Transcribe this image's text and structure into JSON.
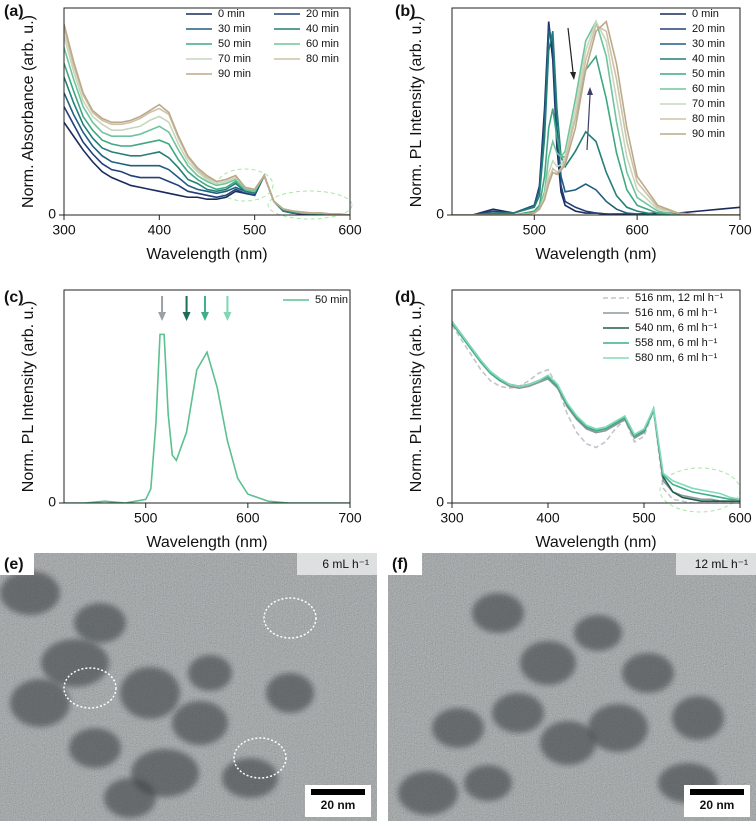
{
  "chart_data": [
    {
      "type": "line",
      "label": "(a)",
      "x_label": "Wavelength (nm)",
      "y_label": "Norm. Absorbance (arb. u.)",
      "xlim": [
        300,
        600
      ],
      "xticks": [
        300,
        400,
        500,
        600
      ],
      "ylim": [
        0,
        1.05
      ],
      "yticks": [
        0
      ],
      "legend_columns": 2,
      "x": [
        300,
        310,
        320,
        330,
        340,
        350,
        360,
        370,
        380,
        390,
        400,
        410,
        420,
        430,
        440,
        450,
        460,
        470,
        480,
        490,
        500,
        510,
        520,
        530,
        540,
        550,
        560,
        570,
        580,
        590,
        600
      ],
      "series": [
        {
          "name": "0 min",
          "color": "#1b2a5c",
          "values": [
            0.47,
            0.4,
            0.33,
            0.27,
            0.22,
            0.19,
            0.17,
            0.15,
            0.14,
            0.13,
            0.12,
            0.11,
            0.1,
            0.09,
            0.09,
            0.08,
            0.08,
            0.09,
            0.12,
            0.11,
            0.1,
            0.2,
            0.07,
            0.02,
            0.01,
            0.005,
            0.005,
            0,
            0,
            0,
            0
          ]
        },
        {
          "name": "20 min",
          "color": "#22407a",
          "values": [
            0.55,
            0.46,
            0.37,
            0.31,
            0.26,
            0.23,
            0.22,
            0.2,
            0.19,
            0.19,
            0.19,
            0.17,
            0.15,
            0.12,
            0.11,
            0.1,
            0.09,
            0.1,
            0.13,
            0.11,
            0.1,
            0.2,
            0.07,
            0.02,
            0.01,
            0.005,
            0.005,
            0,
            0,
            0,
            0
          ]
        },
        {
          "name": "30 min",
          "color": "#1f5f80",
          "values": [
            0.62,
            0.51,
            0.42,
            0.35,
            0.3,
            0.27,
            0.26,
            0.25,
            0.25,
            0.25,
            0.25,
            0.23,
            0.19,
            0.15,
            0.13,
            0.12,
            0.11,
            0.12,
            0.14,
            0.12,
            0.11,
            0.2,
            0.07,
            0.02,
            0.01,
            0.01,
            0.005,
            0.005,
            0,
            0,
            0
          ]
        },
        {
          "name": "40 min",
          "color": "#247f78",
          "values": [
            0.7,
            0.57,
            0.46,
            0.39,
            0.34,
            0.32,
            0.31,
            0.3,
            0.3,
            0.31,
            0.32,
            0.29,
            0.24,
            0.18,
            0.16,
            0.13,
            0.12,
            0.13,
            0.16,
            0.12,
            0.11,
            0.2,
            0.07,
            0.02,
            0.01,
            0.01,
            0.005,
            0.005,
            0,
            0,
            0
          ]
        },
        {
          "name": "50 min",
          "color": "#3fa881",
          "values": [
            0.77,
            0.63,
            0.5,
            0.43,
            0.38,
            0.36,
            0.35,
            0.35,
            0.36,
            0.37,
            0.38,
            0.36,
            0.28,
            0.22,
            0.18,
            0.15,
            0.13,
            0.14,
            0.17,
            0.13,
            0.12,
            0.2,
            0.07,
            0.03,
            0.02,
            0.01,
            0.01,
            0.005,
            0,
            0,
            0
          ]
        },
        {
          "name": "60 min",
          "color": "#6ec59b",
          "values": [
            0.85,
            0.69,
            0.55,
            0.47,
            0.42,
            0.4,
            0.4,
            0.4,
            0.41,
            0.43,
            0.45,
            0.42,
            0.33,
            0.25,
            0.2,
            0.17,
            0.15,
            0.16,
            0.18,
            0.13,
            0.12,
            0.2,
            0.07,
            0.03,
            0.02,
            0.01,
            0.01,
            0.01,
            0.005,
            0,
            0
          ]
        },
        {
          "name": "70 min",
          "color": "#c8d6bd",
          "values": [
            0.91,
            0.73,
            0.58,
            0.5,
            0.46,
            0.43,
            0.43,
            0.44,
            0.45,
            0.48,
            0.5,
            0.47,
            0.36,
            0.27,
            0.22,
            0.18,
            0.16,
            0.17,
            0.19,
            0.14,
            0.13,
            0.2,
            0.07,
            0.03,
            0.02,
            0.015,
            0.01,
            0.01,
            0.005,
            0.005,
            0
          ]
        },
        {
          "name": "80 min",
          "color": "#cdc2a6",
          "values": [
            0.95,
            0.76,
            0.61,
            0.52,
            0.48,
            0.46,
            0.46,
            0.47,
            0.49,
            0.52,
            0.54,
            0.51,
            0.39,
            0.29,
            0.23,
            0.19,
            0.17,
            0.18,
            0.2,
            0.14,
            0.13,
            0.2,
            0.07,
            0.03,
            0.02,
            0.015,
            0.01,
            0.01,
            0.005,
            0.005,
            0
          ]
        },
        {
          "name": "90 min",
          "color": "#bca98a",
          "values": [
            0.97,
            0.78,
            0.62,
            0.53,
            0.49,
            0.47,
            0.47,
            0.48,
            0.5,
            0.53,
            0.56,
            0.52,
            0.4,
            0.3,
            0.24,
            0.2,
            0.17,
            0.18,
            0.2,
            0.14,
            0.13,
            0.2,
            0.07,
            0.03,
            0.02,
            0.015,
            0.01,
            0.01,
            0.005,
            0.005,
            0
          ]
        }
      ]
    },
    {
      "type": "line",
      "label": "(b)",
      "x_label": "Wavelength (nm)",
      "y_label": "Norm. PL Intensity (arb. u.)",
      "xlim": [
        420,
        700
      ],
      "xticks": [
        500,
        600,
        700
      ],
      "ylim": [
        0,
        1.07
      ],
      "yticks": [
        0
      ],
      "legend_columns": 1,
      "x": [
        420,
        440,
        460,
        480,
        500,
        505,
        510,
        514,
        518,
        522,
        526,
        530,
        540,
        550,
        560,
        570,
        580,
        590,
        600,
        620,
        640,
        660,
        680,
        700
      ],
      "series": [
        {
          "name": "0 min",
          "color": "#1b2a5c",
          "values": [
            0,
            0,
            0.03,
            0.01,
            0.05,
            0.15,
            0.55,
            1.0,
            0.8,
            0.35,
            0.12,
            0.05,
            0.02,
            0.01,
            0.01,
            0.005,
            0.005,
            0.005,
            0.005,
            0.01,
            0.01,
            0.02,
            0.03,
            0.04
          ]
        },
        {
          "name": "20 min",
          "color": "#22407a",
          "values": [
            0,
            0,
            0.02,
            0.01,
            0.05,
            0.14,
            0.5,
            0.98,
            0.85,
            0.4,
            0.15,
            0.07,
            0.04,
            0.02,
            0.01,
            0.005,
            0,
            0,
            0,
            0,
            0,
            0,
            0,
            0
          ]
        },
        {
          "name": "30 min",
          "color": "#1f5f80",
          "values": [
            0,
            0,
            0.01,
            0.01,
            0.05,
            0.13,
            0.48,
            0.95,
            0.9,
            0.45,
            0.2,
            0.12,
            0.13,
            0.16,
            0.13,
            0.07,
            0.03,
            0.01,
            0.005,
            0,
            0,
            0,
            0,
            0
          ]
        },
        {
          "name": "40 min",
          "color": "#247f78",
          "values": [
            0,
            0,
            0.01,
            0.01,
            0.04,
            0.1,
            0.4,
            0.85,
            0.95,
            0.55,
            0.3,
            0.25,
            0.33,
            0.43,
            0.38,
            0.22,
            0.1,
            0.04,
            0.02,
            0,
            0,
            0,
            0,
            0
          ]
        },
        {
          "name": "50 min",
          "color": "#3fa881",
          "values": [
            0,
            0,
            0,
            0,
            0.02,
            0.05,
            0.2,
            0.45,
            0.55,
            0.4,
            0.3,
            0.3,
            0.5,
            0.75,
            0.82,
            0.6,
            0.32,
            0.13,
            0.05,
            0.01,
            0,
            0,
            0,
            0
          ]
        },
        {
          "name": "60 min",
          "color": "#6ec59b",
          "values": [
            0,
            0,
            0,
            0,
            0.01,
            0.04,
            0.12,
            0.3,
            0.38,
            0.32,
            0.3,
            0.33,
            0.6,
            0.9,
            1.0,
            0.82,
            0.48,
            0.22,
            0.09,
            0.02,
            0,
            0,
            0,
            0
          ]
        },
        {
          "name": "70 min",
          "color": "#c8d6bd",
          "values": [
            0,
            0,
            0,
            0,
            0.01,
            0.03,
            0.1,
            0.22,
            0.28,
            0.25,
            0.26,
            0.3,
            0.55,
            0.85,
            1.0,
            0.9,
            0.6,
            0.3,
            0.13,
            0.03,
            0.01,
            0,
            0,
            0
          ]
        },
        {
          "name": "80 min",
          "color": "#cdc2a6",
          "values": [
            0,
            0,
            0,
            0,
            0.01,
            0.03,
            0.08,
            0.18,
            0.24,
            0.22,
            0.24,
            0.28,
            0.5,
            0.8,
            0.98,
            0.95,
            0.7,
            0.38,
            0.17,
            0.04,
            0.01,
            0,
            0,
            0
          ]
        },
        {
          "name": "90 min",
          "color": "#bca98a",
          "values": [
            0,
            0,
            0,
            0,
            0.01,
            0.03,
            0.08,
            0.16,
            0.22,
            0.21,
            0.23,
            0.26,
            0.45,
            0.75,
            0.95,
            1.0,
            0.78,
            0.45,
            0.2,
            0.05,
            0.01,
            0,
            0,
            0
          ]
        }
      ]
    },
    {
      "type": "line",
      "label": "(c)",
      "x_label": "Wavelength (nm)",
      "y_label": "Norm. PL Intensity (arb. u.)",
      "xlim": [
        420,
        700
      ],
      "xticks": [
        500,
        600,
        700
      ],
      "ylim": [
        0,
        1.2
      ],
      "yticks": [
        0
      ],
      "legend_columns": 1,
      "x": [
        420,
        440,
        460,
        480,
        500,
        505,
        510,
        514,
        518,
        522,
        526,
        530,
        540,
        550,
        560,
        570,
        580,
        590,
        600,
        620,
        640,
        660,
        680,
        700
      ],
      "series": [
        {
          "name": "50 min",
          "color": "#5cc08f",
          "values": [
            0,
            0,
            0.01,
            0,
            0.02,
            0.08,
            0.45,
            0.95,
            0.95,
            0.5,
            0.27,
            0.24,
            0.4,
            0.75,
            0.85,
            0.65,
            0.35,
            0.14,
            0.05,
            0.01,
            0,
            0,
            0,
            0
          ]
        }
      ],
      "arrows": [
        {
          "x": 516,
          "color": "#9aa0a6"
        },
        {
          "x": 540,
          "color": "#1f6b5a"
        },
        {
          "x": 558,
          "color": "#3fae8a"
        },
        {
          "x": 580,
          "color": "#7fd8b0"
        }
      ]
    },
    {
      "type": "line",
      "label": "(d)",
      "x_label": "Wavelength (nm)",
      "y_label": "Norm. PL Intensity (arb. u.)",
      "xlim": [
        300,
        600
      ],
      "xticks": [
        300,
        400,
        500,
        600
      ],
      "ylim": [
        0,
        1.15
      ],
      "yticks": [
        0
      ],
      "legend_columns": 1,
      "x": [
        300,
        310,
        320,
        330,
        340,
        350,
        360,
        370,
        380,
        390,
        400,
        410,
        420,
        430,
        440,
        450,
        460,
        470,
        480,
        490,
        500,
        510,
        520,
        530,
        540,
        550,
        560,
        570,
        580,
        590,
        600
      ],
      "series": [
        {
          "name": "516 nm, 12 ml h⁻¹",
          "color": "#c4c4cc",
          "dashed": true,
          "values": [
            0.96,
            0.88,
            0.8,
            0.72,
            0.66,
            0.63,
            0.62,
            0.63,
            0.66,
            0.7,
            0.72,
            0.63,
            0.48,
            0.38,
            0.32,
            0.3,
            0.33,
            0.4,
            0.45,
            0.33,
            0.36,
            0.5,
            0.08,
            0.02,
            0.01,
            0,
            0,
            0,
            0,
            0,
            0
          ]
        },
        {
          "name": "516 nm, 6 ml h⁻¹",
          "color": "#8e979c",
          "values": [
            0.97,
            0.9,
            0.83,
            0.76,
            0.7,
            0.66,
            0.63,
            0.62,
            0.63,
            0.65,
            0.67,
            0.62,
            0.52,
            0.45,
            0.4,
            0.38,
            0.39,
            0.42,
            0.45,
            0.35,
            0.38,
            0.5,
            0.12,
            0.06,
            0.04,
            0.03,
            0.02,
            0.02,
            0.01,
            0.01,
            0.01
          ]
        },
        {
          "name": "540 nm, 6 ml h⁻¹",
          "color": "#1f5f4e",
          "values": [
            0.98,
            0.91,
            0.84,
            0.77,
            0.71,
            0.67,
            0.64,
            0.63,
            0.64,
            0.66,
            0.68,
            0.63,
            0.53,
            0.46,
            0.41,
            0.39,
            0.4,
            0.43,
            0.46,
            0.36,
            0.39,
            0.51,
            0.14,
            0.06,
            0.03,
            0.02,
            0.01,
            0.01,
            0.01,
            0.01,
            0.01
          ]
        },
        {
          "name": "558 nm, 6 ml h⁻¹",
          "color": "#3fae8a",
          "values": [
            0.97,
            0.9,
            0.83,
            0.76,
            0.7,
            0.66,
            0.64,
            0.63,
            0.64,
            0.66,
            0.68,
            0.63,
            0.53,
            0.46,
            0.41,
            0.39,
            0.4,
            0.43,
            0.46,
            0.36,
            0.39,
            0.5,
            0.15,
            0.1,
            0.08,
            0.06,
            0.05,
            0.04,
            0.03,
            0.02,
            0.02
          ]
        },
        {
          "name": "580 nm, 6 ml h⁻¹",
          "color": "#82dbb6",
          "values": [
            0.98,
            0.91,
            0.84,
            0.77,
            0.71,
            0.67,
            0.64,
            0.63,
            0.64,
            0.66,
            0.69,
            0.64,
            0.54,
            0.47,
            0.42,
            0.4,
            0.41,
            0.44,
            0.47,
            0.37,
            0.4,
            0.51,
            0.16,
            0.12,
            0.1,
            0.08,
            0.07,
            0.06,
            0.05,
            0.03,
            0.02
          ]
        }
      ]
    }
  ],
  "images": [
    {
      "label": "(e)",
      "annotation": "6 mL h⁻¹",
      "scale_bar": "20 nm"
    },
    {
      "label": "(f)",
      "annotation": "12 mL h⁻¹",
      "scale_bar": "20 nm"
    }
  ]
}
